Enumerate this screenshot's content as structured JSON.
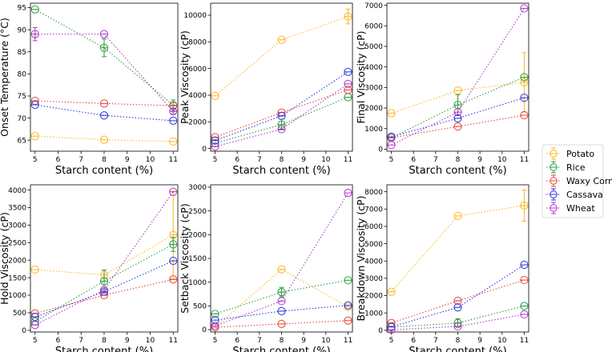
{
  "series_colors": {
    "Potato": "#FFB627",
    "Rice": "#2E9E3E",
    "Waxy Corn": "#E8473A",
    "Cassava": "#2E36E0",
    "Wheat": "#B038C8"
  },
  "legend": {
    "entries": [
      "Potato",
      "Rice",
      "Waxy Corn",
      "Cassava",
      "Wheat"
    ]
  },
  "chart_data": [
    {
      "type": "line",
      "ylabel": "Onset Temperature (°C)",
      "xlabel": "Starch content (%)",
      "xlim": [
        4.8,
        11.2
      ],
      "ylim": [
        62.5,
        96
      ],
      "xticks": [
        5,
        6,
        7,
        8,
        9,
        10,
        11
      ],
      "yticks": [
        65,
        70,
        75,
        80,
        85,
        90,
        95
      ],
      "x": [
        5,
        8,
        11
      ],
      "series": [
        {
          "name": "Potato",
          "values": [
            65.9,
            65.1,
            64.7
          ],
          "errors": [
            0,
            0,
            0
          ]
        },
        {
          "name": "Rice",
          "values": [
            94.6,
            85.9,
            72.9
          ],
          "errors": [
            0,
            2.0,
            1.2
          ]
        },
        {
          "name": "Waxy Corn",
          "values": [
            73.9,
            73.3,
            72.8
          ],
          "errors": [
            0,
            0,
            0
          ]
        },
        {
          "name": "Cassava",
          "values": [
            73.0,
            70.6,
            69.4
          ],
          "errors": [
            0,
            0,
            0
          ]
        },
        {
          "name": "Wheat",
          "values": [
            89.0,
            89.0,
            71.5
          ],
          "errors": [
            1.5,
            0,
            0.5
          ]
        }
      ]
    },
    {
      "type": "line",
      "ylabel": "Peak Viscosity (cP)",
      "xlabel": "Starch content (%)",
      "xlim": [
        4.8,
        11.2
      ],
      "ylim": [
        -200,
        10900
      ],
      "xticks": [
        5,
        6,
        7,
        8,
        9,
        10,
        11
      ],
      "yticks": [
        0,
        2000,
        4000,
        6000,
        8000,
        10000
      ],
      "x": [
        5,
        8,
        11
      ],
      "series": [
        {
          "name": "Potato",
          "values": [
            3950,
            8150,
            9900
          ],
          "errors": [
            0,
            0,
            550
          ]
        },
        {
          "name": "Rice",
          "values": [
            400,
            1800,
            3850
          ],
          "errors": [
            0,
            400,
            0
          ]
        },
        {
          "name": "Waxy Corn",
          "values": [
            850,
            2700,
            4400
          ],
          "errors": [
            0,
            0,
            0
          ]
        },
        {
          "name": "Cassava",
          "values": [
            600,
            2450,
            5750
          ],
          "errors": [
            0,
            0,
            0
          ]
        },
        {
          "name": "Wheat",
          "values": [
            150,
            1450,
            4850
          ],
          "errors": [
            0,
            0,
            0
          ]
        }
      ]
    },
    {
      "type": "line",
      "ylabel": "Final Viscosity (cP)",
      "xlabel": "Starch content (%)",
      "xlim": [
        4.8,
        11.2
      ],
      "ylim": [
        -100,
        7100
      ],
      "xticks": [
        5,
        6,
        7,
        8,
        9,
        10,
        11
      ],
      "yticks": [
        0,
        1000,
        2000,
        3000,
        4000,
        5000,
        6000,
        7000
      ],
      "x": [
        5,
        8,
        11
      ],
      "series": [
        {
          "name": "Potato",
          "values": [
            1750,
            2850,
            3250
          ],
          "errors": [
            0,
            0,
            1450
          ]
        },
        {
          "name": "Rice",
          "values": [
            550,
            2150,
            3500
          ],
          "errors": [
            0,
            500,
            0
          ]
        },
        {
          "name": "Waxy Corn",
          "values": [
            550,
            1100,
            1650
          ],
          "errors": [
            0,
            0,
            0
          ]
        },
        {
          "name": "Cassava",
          "values": [
            600,
            1500,
            2500
          ],
          "errors": [
            0,
            0,
            0
          ]
        },
        {
          "name": "Wheat",
          "values": [
            200,
            1800,
            6850
          ],
          "errors": [
            0,
            0,
            0
          ]
        }
      ]
    },
    {
      "type": "line",
      "ylabel": "Hold Viscosity (cP)",
      "xlabel": "Starch content (%)",
      "xlim": [
        4.8,
        11.2
      ],
      "ylim": [
        -50,
        4150
      ],
      "xticks": [
        5,
        6,
        7,
        8,
        9,
        10,
        11
      ],
      "yticks": [
        0,
        500,
        1000,
        1500,
        2000,
        2500,
        3000,
        3500,
        4000
      ],
      "x": [
        5,
        8,
        11
      ],
      "series": [
        {
          "name": "Potato",
          "values": [
            1730,
            1580,
            2720
          ],
          "errors": [
            0,
            0,
            1250
          ]
        },
        {
          "name": "Rice",
          "values": [
            250,
            1400,
            2450
          ],
          "errors": [
            0,
            320,
            200
          ]
        },
        {
          "name": "Waxy Corn",
          "values": [
            480,
            1000,
            1450
          ],
          "errors": [
            0,
            0,
            0
          ]
        },
        {
          "name": "Cassava",
          "values": [
            380,
            1100,
            1980
          ],
          "errors": [
            0,
            0,
            0
          ]
        },
        {
          "name": "Wheat",
          "values": [
            150,
            1150,
            3950
          ],
          "errors": [
            0,
            0,
            0
          ]
        }
      ]
    },
    {
      "type": "line",
      "ylabel": "Setback Viscosity (cP)",
      "xlabel": "Starch content (%)",
      "xlim": [
        4.8,
        11.2
      ],
      "ylim": [
        -50,
        3050
      ],
      "xticks": [
        5,
        6,
        7,
        8,
        9,
        10,
        11
      ],
      "yticks": [
        0,
        500,
        1000,
        1500,
        2000,
        2500,
        3000
      ],
      "x": [
        5,
        8,
        11
      ],
      "series": [
        {
          "name": "Potato",
          "values": [
            50,
            1270,
            480
          ],
          "errors": [
            0,
            0,
            0
          ]
        },
        {
          "name": "Rice",
          "values": [
            330,
            790,
            1040
          ],
          "errors": [
            0,
            100,
            0
          ]
        },
        {
          "name": "Waxy Corn",
          "values": [
            50,
            120,
            190
          ],
          "errors": [
            0,
            0,
            0
          ]
        },
        {
          "name": "Cassava",
          "values": [
            200,
            390,
            510
          ],
          "errors": [
            0,
            0,
            0
          ]
        },
        {
          "name": "Wheat",
          "values": [
            80,
            600,
            2880
          ],
          "errors": [
            0,
            0,
            0
          ]
        }
      ]
    },
    {
      "type": "line",
      "ylabel": "Breakdown Viscosity (cP)",
      "xlabel": "Starch content (%)",
      "xlim": [
        4.8,
        11.2
      ],
      "ylim": [
        -100,
        8400
      ],
      "xticks": [
        5,
        6,
        7,
        8,
        9,
        10,
        11
      ],
      "yticks": [
        0,
        1000,
        2000,
        3000,
        4000,
        5000,
        6000,
        7000,
        8000
      ],
      "x": [
        5,
        8,
        11
      ],
      "series": [
        {
          "name": "Potato",
          "values": [
            2220,
            6600,
            7200
          ],
          "errors": [
            0,
            0,
            900
          ]
        },
        {
          "name": "Rice",
          "values": [
            180,
            420,
            1400
          ],
          "errors": [
            0,
            250,
            0
          ]
        },
        {
          "name": "Waxy Corn",
          "values": [
            420,
            1700,
            2900
          ],
          "errors": [
            0,
            0,
            0
          ]
        },
        {
          "name": "Cassava",
          "values": [
            200,
            1320,
            3780
          ],
          "errors": [
            0,
            0,
            0
          ]
        },
        {
          "name": "Wheat",
          "values": [
            30,
            220,
            920
          ],
          "errors": [
            0,
            0,
            0
          ]
        }
      ]
    }
  ]
}
